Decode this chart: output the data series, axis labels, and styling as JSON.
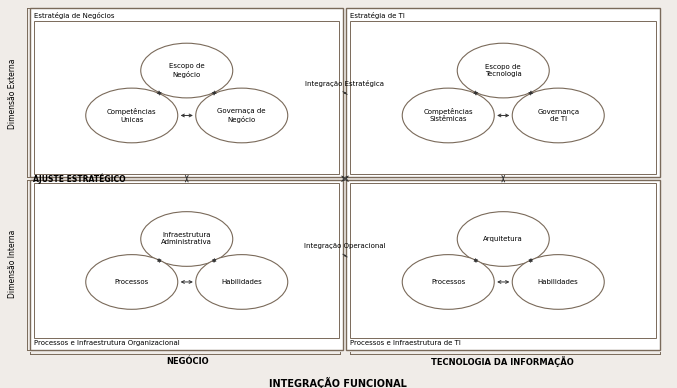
{
  "title": "INTEGRAÇÃO FUNCIONAL",
  "label_negocio": "NEGÓCIO",
  "label_ti": "TECNOLOGIA DA INFORMAÇÃO",
  "label_ajuste": "AJUSTE ESTRATÉGICO",
  "label_dim_externa": "Dimensão Externa",
  "label_dim_interna": "Dimensão Interna",
  "label_integ_estrategica": "Integração Estratégica",
  "label_integ_operacional": "Integração Operacional",
  "box_estrategia_negocios": "Estratégia de Negócios",
  "box_estrategia_ti": "Estratégia de TI",
  "box_proc_org": "Processos e Infraestrutura Organizacional",
  "box_proc_ti": "Processos e Infraestrutura de TI",
  "ellipse_escopo_negocio": "Escopo de\nNegócio",
  "ellipse_competencias_unicas": "Competências\nÚnicas",
  "ellipse_governaca_negocio": "Governaça de\nNegócio",
  "ellipse_escopo_tecnologia": "Escopo de\nTecnologia",
  "ellipse_competencias_sistemicas": "Competências\nSistêmicas",
  "ellipse_governanca_ti": "Governança\nde TI",
  "ellipse_infra_admin": "Infraestrutura\nAdministrativa",
  "ellipse_processos_bl": "Processos",
  "ellipse_habilidades_bl": "Habilidades",
  "ellipse_arquitetura": "Arquitetura",
  "ellipse_processos_ti": "Processos",
  "ellipse_habilidades_ti": "Habilidades",
  "bg_color": "#f0ece8",
  "box_fill": "#ffffff",
  "box_edge": "#7a6a5a",
  "ellipse_fill": "#ffffff",
  "ellipse_edge": "#7a6a5a",
  "arrow_color": "#333333",
  "text_color": "#000000"
}
